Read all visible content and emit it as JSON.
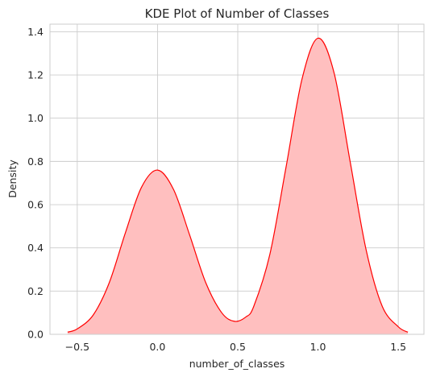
{
  "chart_data": {
    "type": "area",
    "title": "KDE Plot of Number of Classes",
    "xlabel": "number_of_classes",
    "ylabel": "Density",
    "xlim": [
      -0.67,
      1.66
    ],
    "ylim": [
      0,
      1.435
    ],
    "xticks": [
      -0.5,
      0.0,
      0.5,
      1.0,
      1.5
    ],
    "xtick_labels": [
      "−0.5",
      "0.0",
      "0.5",
      "1.0",
      "1.5"
    ],
    "yticks": [
      0.0,
      0.2,
      0.4,
      0.6,
      0.8,
      1.0,
      1.2,
      1.4
    ],
    "ytick_labels": [
      "0.0",
      "0.2",
      "0.4",
      "0.6",
      "0.8",
      "1.0",
      "1.2",
      "1.4"
    ],
    "grid": true,
    "line_color": "#ff0000",
    "fill_color": "#ffbfbf",
    "series": [
      {
        "x": [
          -0.56,
          -0.5,
          -0.4,
          -0.3,
          -0.2,
          -0.1,
          0.0,
          0.1,
          0.2,
          0.3,
          0.4,
          0.48,
          0.55,
          0.6,
          0.7,
          0.8,
          0.9,
          1.0,
          1.1,
          1.2,
          1.3,
          1.4,
          1.5,
          1.56
        ],
        "y": [
          0.01,
          0.025,
          0.09,
          0.24,
          0.47,
          0.68,
          0.76,
          0.67,
          0.46,
          0.24,
          0.1,
          0.06,
          0.08,
          0.13,
          0.37,
          0.77,
          1.18,
          1.37,
          1.21,
          0.8,
          0.39,
          0.13,
          0.035,
          0.01
        ]
      }
    ]
  }
}
